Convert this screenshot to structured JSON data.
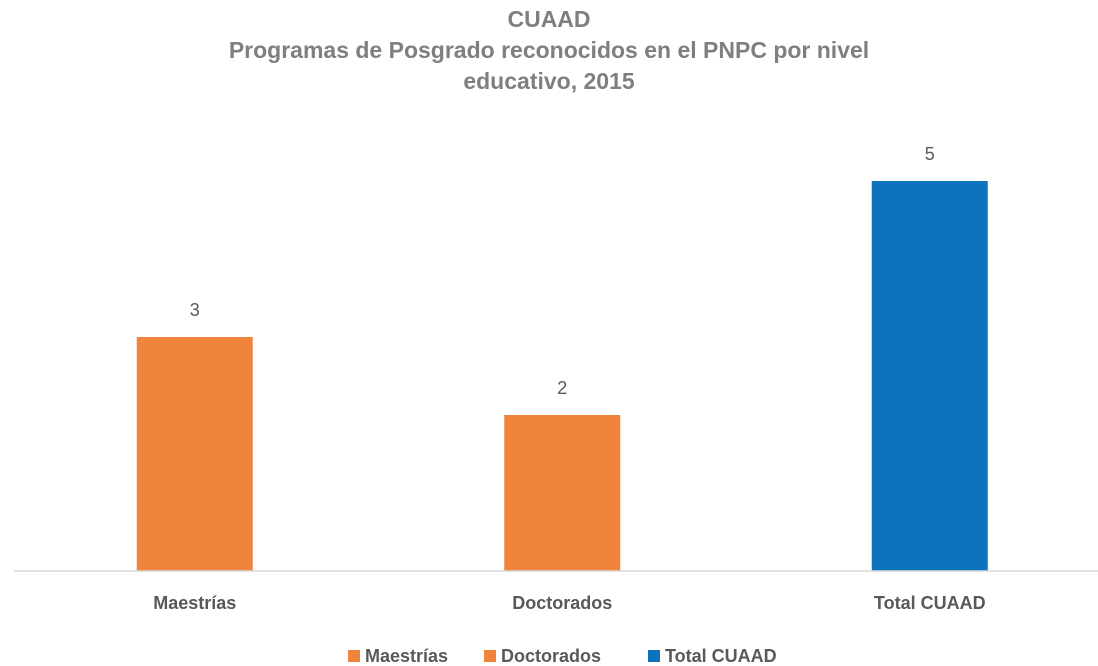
{
  "chart_data": {
    "type": "bar",
    "title": "CUAAD",
    "subtitle": "Programas de Posgrado reconocidos en el PNPC por nivel educativo, 2015",
    "categories": [
      "Maestrías",
      "Doctorados",
      "Total CUAAD"
    ],
    "values": [
      3,
      2,
      5
    ],
    "colors": [
      "#f0843c",
      "#f0843c",
      "#0e72bc"
    ],
    "ylim": [
      0,
      5
    ],
    "legend": "bottom"
  }
}
